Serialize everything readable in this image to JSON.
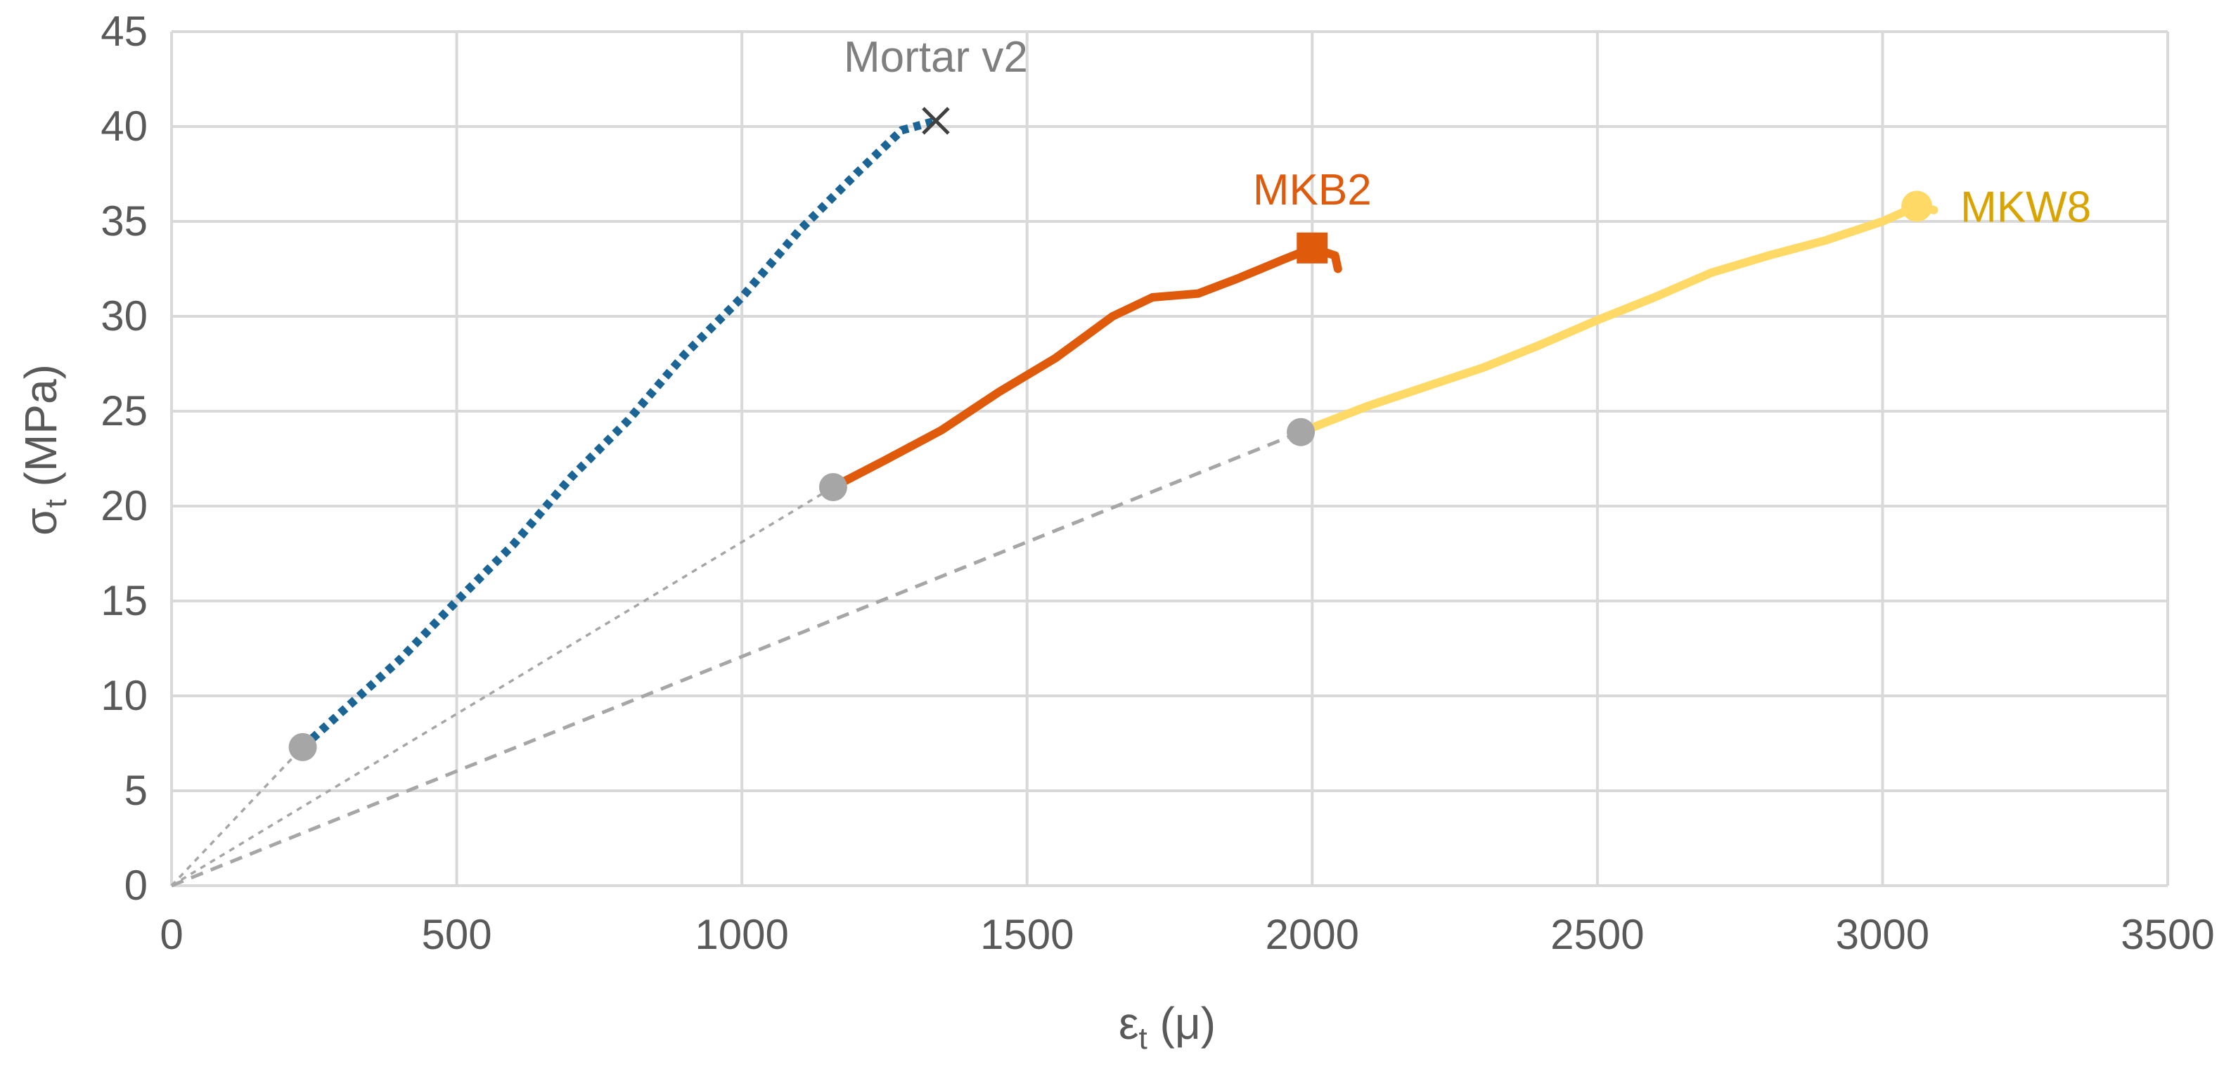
{
  "chart_data": {
    "type": "line",
    "xlabel_main": "ε",
    "xlabel_sub": "t",
    "xlabel_unit": " (μ)",
    "ylabel_main": "σ",
    "ylabel_sub": "t",
    "ylabel_unit": " (MPa)",
    "xlim": [
      0,
      3500
    ],
    "ylim": [
      0,
      45
    ],
    "xticks": [
      0,
      500,
      1000,
      1500,
      2000,
      2500,
      3000,
      3500
    ],
    "yticks": [
      0,
      5,
      10,
      15,
      20,
      25,
      30,
      35,
      40,
      45
    ],
    "grid": true,
    "series": [
      {
        "name": "Mortar v2",
        "label": "Mortar v2",
        "color": "#1a6496",
        "label_color": "#7f7f7f",
        "style": "dashed-thick",
        "points": [
          [
            230,
            7.3
          ],
          [
            300,
            9.2
          ],
          [
            400,
            11.9
          ],
          [
            500,
            15.0
          ],
          [
            600,
            18.0
          ],
          [
            700,
            21.5
          ],
          [
            800,
            24.5
          ],
          [
            900,
            28.0
          ],
          [
            1000,
            31.0
          ],
          [
            1100,
            34.5
          ],
          [
            1200,
            37.5
          ],
          [
            1280,
            39.8
          ],
          [
            1340,
            40.3
          ]
        ],
        "start_marker": {
          "x": 230,
          "y": 7.3
        },
        "end_marker": {
          "x": 1340,
          "y": 40.3,
          "shape": "x"
        }
      },
      {
        "name": "MKB2",
        "label": "MKB2",
        "color": "#e05a0c",
        "label_color": "#e05a0c",
        "style": "solid",
        "points": [
          [
            1160,
            21.0
          ],
          [
            1250,
            22.4
          ],
          [
            1350,
            24.0
          ],
          [
            1450,
            26.0
          ],
          [
            1550,
            27.8
          ],
          [
            1650,
            30.0
          ],
          [
            1720,
            31.0
          ],
          [
            1800,
            31.2
          ],
          [
            1870,
            32.0
          ],
          [
            1950,
            33.0
          ],
          [
            2000,
            33.6
          ],
          [
            2040,
            33.2
          ],
          [
            2045,
            32.5
          ]
        ],
        "start_marker": {
          "x": 1160,
          "y": 21.0
        },
        "end_marker": {
          "x": 2000,
          "y": 33.6,
          "shape": "square"
        }
      },
      {
        "name": "MKW8",
        "label": "MKW8",
        "color": "#ffd966",
        "label_color": "#d9a400",
        "style": "solid",
        "points": [
          [
            1980,
            23.9
          ],
          [
            2100,
            25.3
          ],
          [
            2200,
            26.3
          ],
          [
            2300,
            27.3
          ],
          [
            2400,
            28.5
          ],
          [
            2500,
            29.8
          ],
          [
            2600,
            31.0
          ],
          [
            2700,
            32.3
          ],
          [
            2800,
            33.2
          ],
          [
            2900,
            34.0
          ],
          [
            3000,
            35.0
          ],
          [
            3060,
            35.8
          ],
          [
            3090,
            35.6
          ]
        ],
        "start_marker": {
          "x": 1980,
          "y": 23.9
        },
        "end_marker": {
          "x": 3060,
          "y": 35.8,
          "shape": "circle"
        }
      }
    ],
    "reference_lines": [
      {
        "from": [
          0,
          0
        ],
        "to": [
          230,
          7.3
        ],
        "style": "fine-dotted"
      },
      {
        "from": [
          0,
          0
        ],
        "to": [
          1160,
          21.0
        ],
        "style": "fine-dotted"
      },
      {
        "from": [
          0,
          0
        ],
        "to": [
          1980,
          23.9
        ],
        "style": "dashed"
      }
    ],
    "marker_color": "#a6a6a6"
  }
}
